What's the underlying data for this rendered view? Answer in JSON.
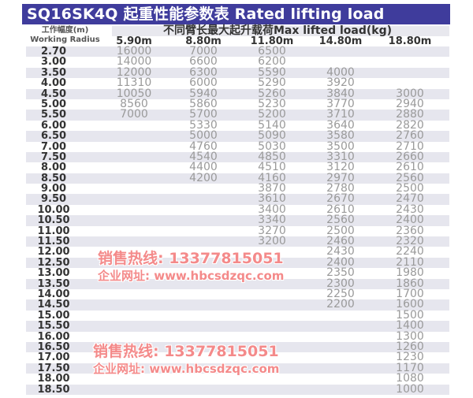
{
  "title": "SQ16SK4Q 起重性能参数表 Rated lifting load",
  "header": {
    "radius_cn": "工作幅度(m)",
    "radius_en": "Working Radius",
    "main": "不同臂长最大起升载荷Max lifted load(kg)",
    "boom_lengths": [
      "5.90m",
      "8.80m",
      "11.80m",
      "14.80m",
      "18.80m"
    ]
  },
  "rows": [
    {
      "radius": "2.70",
      "loads": [
        "16000",
        "7000",
        "6500",
        "",
        ""
      ]
    },
    {
      "radius": "3.00",
      "loads": [
        "14000",
        "6600",
        "6200",
        "",
        ""
      ]
    },
    {
      "radius": "3.50",
      "loads": [
        "12000",
        "6300",
        "5590",
        "4000",
        ""
      ]
    },
    {
      "radius": "4.00",
      "loads": [
        "11310",
        "6000",
        "5290",
        "3920",
        ""
      ]
    },
    {
      "radius": "4.50",
      "loads": [
        "10050",
        "5940",
        "5260",
        "3840",
        "3000"
      ]
    },
    {
      "radius": "5.00",
      "loads": [
        "8560",
        "5860",
        "5230",
        "3770",
        "2940"
      ]
    },
    {
      "radius": "5.50",
      "loads": [
        "7000",
        "5700",
        "5200",
        "3710",
        "2880"
      ]
    },
    {
      "radius": "6.00",
      "loads": [
        "",
        "5330",
        "5140",
        "3640",
        "2820"
      ]
    },
    {
      "radius": "6.50",
      "loads": [
        "",
        "5000",
        "5090",
        "3580",
        "2760"
      ]
    },
    {
      "radius": "7.00",
      "loads": [
        "",
        "4760",
        "5030",
        "3500",
        "2710"
      ]
    },
    {
      "radius": "7.50",
      "loads": [
        "",
        "4540",
        "4850",
        "3310",
        "2660"
      ]
    },
    {
      "radius": "8.00",
      "loads": [
        "",
        "4400",
        "4510",
        "3120",
        "2610"
      ]
    },
    {
      "radius": "8.50",
      "loads": [
        "",
        "4200",
        "4160",
        "2970",
        "2560"
      ]
    },
    {
      "radius": "9.00",
      "loads": [
        "",
        "",
        "3870",
        "2780",
        "2500"
      ]
    },
    {
      "radius": "9.50",
      "loads": [
        "",
        "",
        "3610",
        "2670",
        "2470"
      ]
    },
    {
      "radius": "10.00",
      "loads": [
        "",
        "",
        "3400",
        "2610",
        "2430"
      ]
    },
    {
      "radius": "10.50",
      "loads": [
        "",
        "",
        "3340",
        "2560",
        "2400"
      ]
    },
    {
      "radius": "11.00",
      "loads": [
        "",
        "",
        "3270",
        "2500",
        "2360"
      ]
    },
    {
      "radius": "11.50",
      "loads": [
        "",
        "",
        "3200",
        "2460",
        "2320"
      ]
    },
    {
      "radius": "12.00",
      "loads": [
        "",
        "",
        "",
        "2430",
        "2240"
      ]
    },
    {
      "radius": "12.50",
      "loads": [
        "",
        "",
        "",
        "2400",
        "2110"
      ]
    },
    {
      "radius": "13.00",
      "loads": [
        "",
        "",
        "",
        "2350",
        "1980"
      ]
    },
    {
      "radius": "13.50",
      "loads": [
        "",
        "",
        "",
        "2300",
        "1860"
      ]
    },
    {
      "radius": "14.00",
      "loads": [
        "",
        "",
        "",
        "2250",
        "1700"
      ]
    },
    {
      "radius": "14.50",
      "loads": [
        "",
        "",
        "",
        "2200",
        "1600"
      ]
    },
    {
      "radius": "15.00",
      "loads": [
        "",
        "",
        "",
        "",
        "1500"
      ]
    },
    {
      "radius": "15.50",
      "loads": [
        "",
        "",
        "",
        "",
        "1400"
      ]
    },
    {
      "radius": "16.00",
      "loads": [
        "",
        "",
        "",
        "",
        "1300"
      ]
    },
    {
      "radius": "16.50",
      "loads": [
        "",
        "",
        "",
        "",
        "1260"
      ]
    },
    {
      "radius": "17.00",
      "loads": [
        "",
        "",
        "",
        "",
        "1230"
      ]
    },
    {
      "radius": "17.50",
      "loads": [
        "",
        "",
        "",
        "",
        "1170"
      ]
    },
    {
      "radius": "18.00",
      "loads": [
        "",
        "",
        "",
        "",
        "1080"
      ]
    },
    {
      "radius": "18.50",
      "loads": [
        "",
        "",
        "",
        "",
        "1000"
      ]
    }
  ],
  "watermark": {
    "phone": "销售热线: 13377815051",
    "site": "企业网址: www.hbcsdzqc.com"
  },
  "colors": {
    "title_bg": "#3f3c9c",
    "row_shade": "#e6e6ee",
    "watermark": "#f48a8a"
  }
}
